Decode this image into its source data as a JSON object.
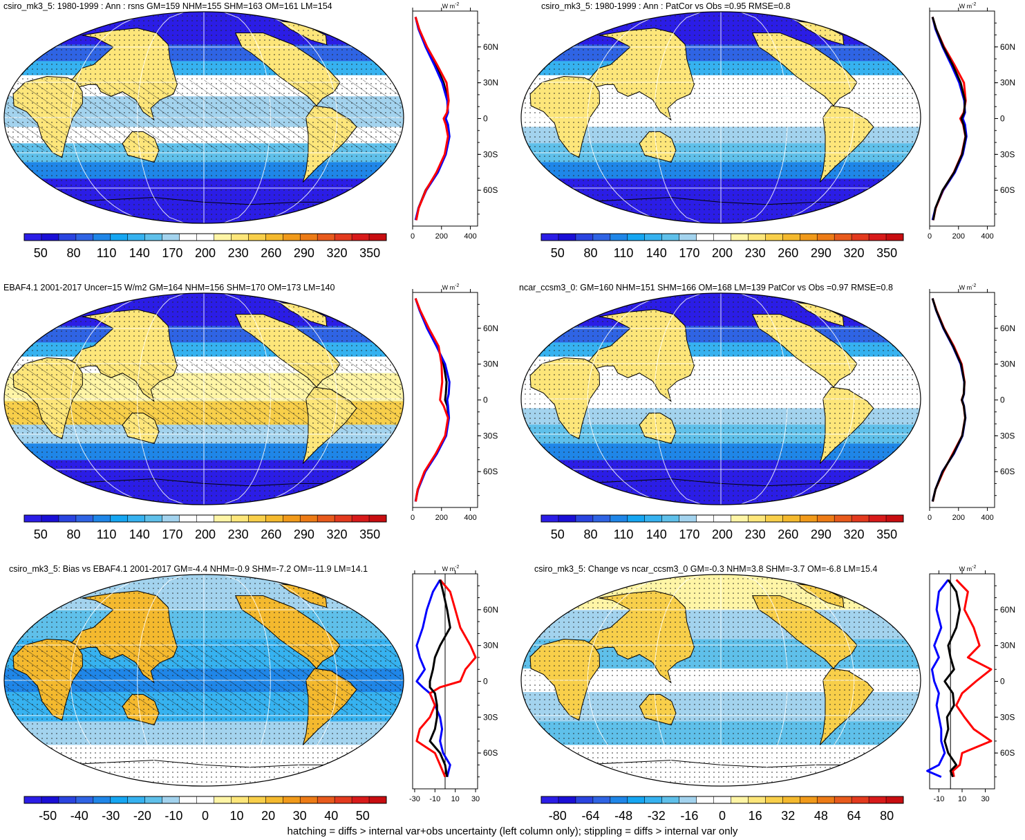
{
  "chart_data": [
    {
      "type": "heatmap",
      "title": "csiro_mk3_5: 1980-1999 : Ann : rsns GM=159 NHM=155 SHM=163 OM=161 LM=154",
      "colorbar_ticks": [
        "50",
        "80",
        "110",
        "140",
        "170",
        "200",
        "230",
        "260",
        "290",
        "320",
        "350"
      ],
      "colorbar_range": [
        35,
        365
      ],
      "profile": {
        "unit_label": "W m",
        "unit_exp": "-2",
        "x_ticks": [
          "0",
          "200",
          "400"
        ],
        "xlim": [
          0,
          450
        ],
        "y_ticks": [
          "60N",
          "30N",
          "0",
          "30S",
          "60S"
        ],
        "series": [
          {
            "color": "#000000",
            "lat": [
              85,
              75,
              60,
              45,
              30,
              15,
              5,
              0,
              -5,
              -15,
              -30,
              -45,
              -60,
              -75,
              -85
            ],
            "values": [
              20,
              45,
              95,
              160,
              215,
              245,
              240,
              220,
              235,
              250,
              225,
              170,
              90,
              40,
              25
            ]
          },
          {
            "color": "#0000ff",
            "lat": [
              85,
              75,
              60,
              45,
              30,
              15,
              5,
              0,
              -5,
              -15,
              -30,
              -45,
              -60,
              -75,
              -85
            ],
            "values": [
              20,
              40,
              90,
              150,
              205,
              240,
              245,
              230,
              245,
              255,
              230,
              175,
              95,
              40,
              20
            ]
          },
          {
            "color": "#ff0000",
            "lat": [
              85,
              75,
              60,
              45,
              30,
              15,
              5,
              0,
              -5,
              -15,
              -30,
              -45,
              -60,
              -75,
              -85
            ],
            "values": [
              20,
              45,
              100,
              170,
              235,
              250,
              238,
              215,
              230,
              245,
              222,
              165,
              92,
              42,
              25
            ]
          }
        ]
      }
    },
    {
      "type": "heatmap",
      "title": "csiro_mk3_5: 1980-1999 : Ann : PatCor vs Obs =0.95 RMSE=0.8",
      "colorbar_ticks": [
        "50",
        "80",
        "110",
        "140",
        "170",
        "200",
        "230",
        "260",
        "290",
        "320",
        "350"
      ],
      "colorbar_range": [
        35,
        365
      ],
      "profile": {
        "unit_label": "W m",
        "unit_exp": "-2",
        "x_ticks": [
          "0",
          "200",
          "400"
        ],
        "xlim": [
          0,
          450
        ],
        "y_ticks": [
          "60N",
          "30N",
          "0",
          "30S",
          "60S"
        ],
        "series": [
          {
            "color": "#0000ff",
            "lat": [
              85,
              75,
              60,
              45,
              30,
              15,
              5,
              0,
              -5,
              -15,
              -30,
              -45,
              -60,
              -75,
              -85
            ],
            "values": [
              20,
              40,
              90,
              150,
              205,
              240,
              245,
              230,
              245,
              255,
              230,
              175,
              95,
              40,
              20
            ]
          },
          {
            "color": "#ff0000",
            "lat": [
              85,
              75,
              60,
              45,
              30,
              15,
              5,
              0,
              -5,
              -15,
              -30,
              -45,
              -60,
              -75,
              -85
            ],
            "values": [
              20,
              45,
              100,
              172,
              238,
              250,
              236,
              212,
              232,
              248,
              222,
              168,
              92,
              42,
              25
            ]
          },
          {
            "color": "#000000",
            "lat": [
              85,
              75,
              60,
              45,
              30,
              15,
              5,
              0,
              -5,
              -15,
              -30,
              -45,
              -60,
              -75,
              -85
            ],
            "values": [
              20,
              45,
              95,
              160,
              215,
              245,
              240,
              220,
              235,
              250,
              225,
              170,
              90,
              40,
              25
            ]
          }
        ]
      }
    },
    {
      "type": "heatmap",
      "title": "EBAF4.1 2001-2017 Uncer=15 W/m2 GM=164 NHM=156 SHM=170 OM=173 LM=140",
      "colorbar_ticks": [
        "50",
        "80",
        "110",
        "140",
        "170",
        "200",
        "230",
        "260",
        "290",
        "320",
        "350"
      ],
      "colorbar_range": [
        35,
        365
      ],
      "profile": {
        "unit_label": "W m",
        "unit_exp": "-2",
        "x_ticks": [
          "0",
          "200",
          "400"
        ],
        "xlim": [
          0,
          450
        ],
        "y_ticks": [
          "60N",
          "30N",
          "0",
          "30S",
          "60S"
        ],
        "series": [
          {
            "color": "#000000",
            "lat": [
              85,
              75,
              60,
              45,
              30,
              15,
              5,
              0,
              -5,
              -15,
              -30,
              -45,
              -60,
              -75,
              -85
            ],
            "values": [
              20,
              50,
              105,
              170,
              215,
              235,
              230,
              225,
              240,
              250,
              230,
              165,
              85,
              35,
              20
            ]
          },
          {
            "color": "#0000ff",
            "lat": [
              85,
              75,
              60,
              45,
              30,
              15,
              5,
              0,
              -5,
              -15,
              -30,
              -45,
              -60,
              -75,
              -85
            ],
            "values": [
              20,
              48,
              100,
              165,
              225,
              255,
              250,
              240,
              245,
              252,
              232,
              168,
              88,
              38,
              20
            ]
          },
          {
            "color": "#ff0000",
            "lat": [
              85,
              75,
              60,
              45,
              30,
              15,
              5,
              0,
              -5,
              -15,
              -30,
              -45,
              -60,
              -75,
              -85
            ],
            "values": [
              20,
              52,
              112,
              180,
              200,
              205,
              195,
              190,
              215,
              245,
              225,
              160,
              82,
              35,
              22
            ]
          }
        ]
      }
    },
    {
      "type": "heatmap",
      "title": "ncar_ccsm3_0: GM=160 NHM=151 SHM=166 OM=168 LM=139 PatCor vs Obs =0.97 RMSE=0.8",
      "colorbar_ticks": [
        "50",
        "80",
        "110",
        "140",
        "170",
        "200",
        "230",
        "260",
        "290",
        "320",
        "350"
      ],
      "colorbar_range": [
        35,
        365
      ],
      "profile": {
        "unit_label": "W m",
        "unit_exp": "-2",
        "x_ticks": [
          "0",
          "200",
          "400"
        ],
        "xlim": [
          0,
          450
        ],
        "y_ticks": [
          "60N",
          "30N",
          "0",
          "30S",
          "60S"
        ],
        "series": [
          {
            "color": "#0000ff",
            "lat": [
              85,
              75,
              60,
              45,
              30,
              15,
              5,
              0,
              -5,
              -15,
              -30,
              -45,
              -60,
              -75,
              -85
            ],
            "values": [
              20,
              45,
              95,
              160,
              215,
              240,
              238,
              225,
              238,
              248,
              228,
              168,
              88,
              40,
              20
            ]
          },
          {
            "color": "#ff0000",
            "lat": [
              85,
              75,
              60,
              45,
              30,
              15,
              5,
              0,
              -5,
              -15,
              -30,
              -45,
              -60,
              -75,
              -85
            ],
            "values": [
              20,
              48,
              100,
              168,
              222,
              242,
              236,
              222,
              236,
              246,
              225,
              160,
              95,
              40,
              22
            ]
          },
          {
            "color": "#000000",
            "lat": [
              85,
              75,
              60,
              45,
              30,
              15,
              5,
              0,
              -5,
              -15,
              -30,
              -45,
              -60,
              -75,
              -85
            ],
            "values": [
              20,
              46,
              97,
              163,
              218,
              241,
              237,
              223,
              237,
              247,
              226,
              165,
              90,
              40,
              21
            ]
          }
        ]
      }
    },
    {
      "type": "heatmap",
      "title": "csiro_mk3_5: Bias vs EBAF4.1 2001-2017 GM=-4.4 NHM=-0.9 SHM=-7.2 OM=-11.9 LM=14.1",
      "colorbar_ticks": [
        "-50",
        "-40",
        "-30",
        "-20",
        "-10",
        "0",
        "10",
        "20",
        "30",
        "40",
        "50"
      ],
      "colorbar_range": [
        -57.5,
        57.5
      ],
      "profile": {
        "unit_label": "W m",
        "unit_exp": "-2",
        "x_ticks": [
          "-30",
          "-10",
          "10",
          "30"
        ],
        "xlim": [
          -32,
          32
        ],
        "y_ticks": [
          "60N",
          "30N",
          "0",
          "30S",
          "60S"
        ],
        "series": [
          {
            "color": "#0000ff",
            "lat": [
              85,
              75,
              60,
              45,
              30,
              20,
              10,
              0,
              -5,
              -10,
              -20,
              -30,
              -40,
              -50,
              -60,
              -70,
              -80
            ],
            "values": [
              -5,
              -12,
              -18,
              -22,
              -28,
              -25,
              -20,
              -28,
              -22,
              -15,
              -10,
              -5,
              -3,
              -5,
              -2,
              5,
              2
            ]
          },
          {
            "color": "#ff0000",
            "lat": [
              85,
              75,
              60,
              45,
              30,
              20,
              10,
              0,
              -5,
              -10,
              -20,
              -30,
              -40,
              -50,
              -60,
              -70,
              -80
            ],
            "values": [
              -5,
              5,
              10,
              15,
              25,
              30,
              20,
              15,
              -5,
              -15,
              -10,
              -15,
              -25,
              -28,
              -10,
              -5,
              0
            ]
          },
          {
            "color": "#000000",
            "lat": [
              85,
              75,
              60,
              45,
              30,
              20,
              10,
              0,
              -5,
              -10,
              -20,
              -30,
              -40,
              -50,
              -60,
              -70,
              -80
            ],
            "values": [
              -5,
              -2,
              2,
              5,
              -5,
              -10,
              -12,
              -15,
              -15,
              -10,
              -8,
              -8,
              -10,
              -15,
              -5,
              0,
              2
            ]
          }
        ]
      }
    },
    {
      "type": "heatmap",
      "title": "csiro_mk3_5: Change vs ncar_ccsm3_0 GM=-0.3 NHM=3.8 SHM=-3.7 OM=-6.8 LM=15.4",
      "colorbar_ticks": [
        "-80",
        "-64",
        "-48",
        "-32",
        "-16",
        "0",
        "16",
        "32",
        "48",
        "64",
        "80"
      ],
      "colorbar_range": [
        -88,
        88
      ],
      "profile": {
        "unit_label": "W m",
        "unit_exp": "-2",
        "x_ticks": [
          "-10",
          "10",
          "30"
        ],
        "xlim": [
          -18,
          38
        ],
        "y_ticks": [
          "60N",
          "30N",
          "0",
          "30S",
          "60S"
        ],
        "series": [
          {
            "color": "#0000ff",
            "lat": [
              85,
              75,
              60,
              45,
              30,
              20,
              10,
              0,
              -10,
              -20,
              -30,
              -40,
              -50,
              -60,
              -70,
              -75,
              -80
            ],
            "values": [
              -2,
              -10,
              -12,
              -8,
              -14,
              -10,
              -16,
              -14,
              -10,
              -12,
              -10,
              -8,
              -8,
              -5,
              -10,
              -20,
              -8
            ]
          },
          {
            "color": "#ff0000",
            "lat": [
              85,
              75,
              60,
              45,
              30,
              20,
              10,
              0,
              -10,
              -20,
              -30,
              -40,
              -50,
              -60,
              -70,
              -75,
              -80
            ],
            "values": [
              5,
              15,
              12,
              20,
              25,
              15,
              35,
              22,
              10,
              5,
              12,
              20,
              35,
              10,
              8,
              2,
              3
            ]
          },
          {
            "color": "#000000",
            "lat": [
              85,
              75,
              60,
              45,
              30,
              20,
              10,
              0,
              -10,
              -20,
              -30,
              -40,
              -50,
              -60,
              -70,
              -75,
              -80
            ],
            "values": [
              -2,
              5,
              8,
              5,
              -2,
              0,
              3,
              -5,
              2,
              3,
              -3,
              -2,
              -5,
              -2,
              5,
              0,
              2
            ]
          }
        ]
      }
    }
  ],
  "footer": "hatching = diffs > internal var+obs uncertainty (left column only); stippling = diffs > internal var only",
  "colors": {
    "abs_scale": [
      "#2b1de6",
      "#1a0fd6",
      "#2a44e0",
      "#2f64e4",
      "#1f86e8",
      "#16a6f2",
      "#36b2f0",
      "#5fc0ea",
      "#a3d3ee",
      "#ffffff",
      "#ffffff",
      "#fff5a6",
      "#fde67a",
      "#f8cf4a",
      "#f4b92e",
      "#f19a1a",
      "#ed7b16",
      "#e85a1c",
      "#e33a1e",
      "#d81a1a",
      "#c80d10"
    ],
    "diff_scale": [
      "#2b1de6",
      "#1a0fd6",
      "#2a44e0",
      "#2f64e4",
      "#1f86e8",
      "#16a6f2",
      "#36b2f0",
      "#5fc0ea",
      "#a3d3ee",
      "#ffffff",
      "#ffffff",
      "#fff5a6",
      "#fde67a",
      "#f8cf4a",
      "#f4b92e",
      "#f19a1a",
      "#ed7b16",
      "#e85a1c",
      "#e33a1e",
      "#d81a1a",
      "#c80d10"
    ]
  }
}
